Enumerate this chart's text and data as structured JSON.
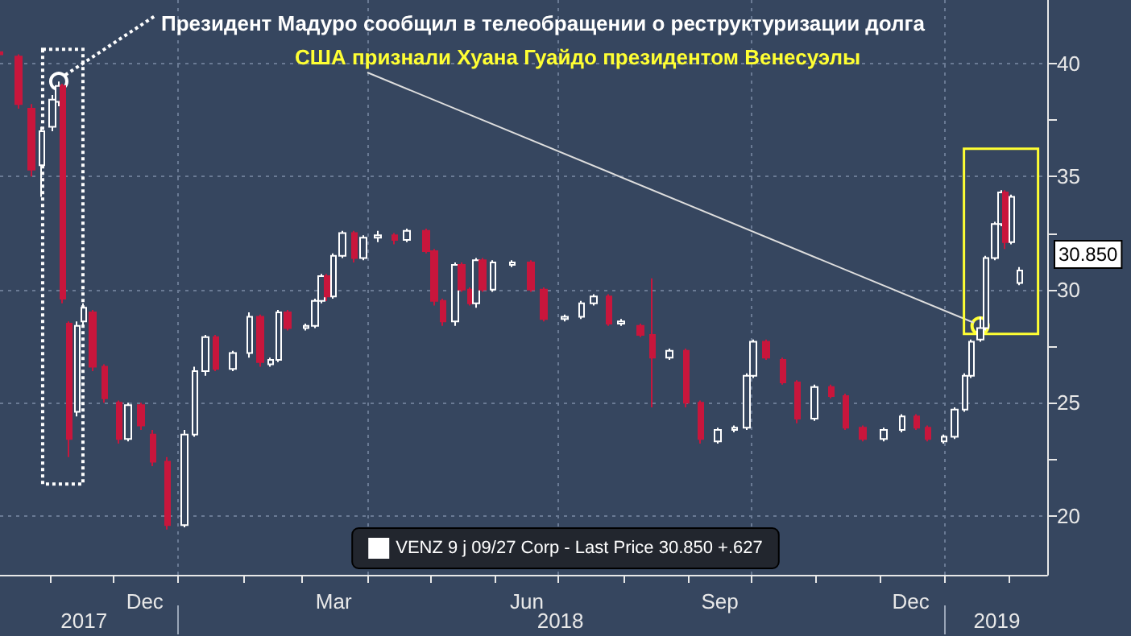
{
  "chart_data": {
    "type": "candlestick",
    "x": [
      "2017-10-08",
      "2017-10-17",
      "2017-10-23",
      "2017-10-28",
      "2017-11-02",
      "2017-11-05",
      "2017-11-07",
      "2017-11-10",
      "2017-11-14",
      "2017-11-17",
      "2017-11-21",
      "2017-11-27",
      "2017-12-04",
      "2017-12-08",
      "2017-12-14",
      "2017-12-20",
      "2017-12-27",
      "2018-01-04",
      "2018-01-09",
      "2018-01-14",
      "2018-01-19",
      "2018-01-27",
      "2018-02-04",
      "2018-02-09",
      "2018-02-14",
      "2018-02-18",
      "2018-02-22",
      "2018-03-03",
      "2018-03-07",
      "2018-03-10",
      "2018-03-13",
      "2018-03-16",
      "2018-03-20",
      "2018-03-26",
      "2018-03-30",
      "2018-04-06",
      "2018-04-14",
      "2018-04-20",
      "2018-04-29",
      "2018-05-03",
      "2018-05-07",
      "2018-05-13",
      "2018-05-16",
      "2018-05-20",
      "2018-05-23",
      "2018-05-26",
      "2018-05-31",
      "2018-06-09",
      "2018-06-18",
      "2018-06-24",
      "2018-07-04",
      "2018-07-12",
      "2018-07-18",
      "2018-07-25",
      "2018-07-31",
      "2018-08-09",
      "2018-08-15",
      "2018-08-23",
      "2018-08-31",
      "2018-09-07",
      "2018-09-15",
      "2018-09-23",
      "2018-09-29",
      "2018-10-02",
      "2018-10-08",
      "2018-10-16",
      "2018-10-23",
      "2018-10-31",
      "2018-11-08",
      "2018-11-15",
      "2018-11-23",
      "2018-12-03",
      "2018-12-12",
      "2018-12-19",
      "2018-12-24",
      "2019-01-01",
      "2019-01-06",
      "2019-01-11",
      "2019-01-14",
      "2019-01-18",
      "2019-01-21",
      "2019-01-25",
      "2019-01-28",
      "2019-01-30",
      "2019-02-02",
      "2019-02-06"
    ],
    "series": [
      {
        "name": "VENZ 9 j 09/27 Corp - Last Price 30.850 +.627",
        "color": "#ffffff",
        "ohlc": [
          [
            40.5,
            40.7,
            40.2,
            40.4
          ],
          [
            40.3,
            40.4,
            38.0,
            38.2
          ],
          [
            38.0,
            38.2,
            35.0,
            35.3
          ],
          [
            35.5,
            37.2,
            34.1,
            37.0
          ],
          [
            37.2,
            38.6,
            37.0,
            38.4
          ],
          [
            38.3,
            39.2,
            38.1,
            39.0
          ],
          [
            39.0,
            39.1,
            29.4,
            29.6
          ],
          [
            28.5,
            28.6,
            22.6,
            23.4
          ],
          [
            24.6,
            28.6,
            24.4,
            28.4
          ],
          [
            28.6,
            29.4,
            28.4,
            29.2
          ],
          [
            29.0,
            29.1,
            26.4,
            26.6
          ],
          [
            26.6,
            26.7,
            25.0,
            25.2
          ],
          [
            25.0,
            25.1,
            23.2,
            23.4
          ],
          [
            23.4,
            25.0,
            23.3,
            24.9
          ],
          [
            24.9,
            25.0,
            23.8,
            24.0
          ],
          [
            23.6,
            23.8,
            22.2,
            22.4
          ],
          [
            22.4,
            22.6,
            19.4,
            19.6
          ],
          [
            19.6,
            23.8,
            19.5,
            23.6
          ],
          [
            23.6,
            26.6,
            23.5,
            26.4
          ],
          [
            26.4,
            28.0,
            26.2,
            27.9
          ],
          [
            27.9,
            28.0,
            26.4,
            26.5
          ],
          [
            26.5,
            27.3,
            26.4,
            27.2
          ],
          [
            27.2,
            29.0,
            27.0,
            28.8
          ],
          [
            28.8,
            28.9,
            26.6,
            26.8
          ],
          [
            26.7,
            27.0,
            26.6,
            26.9
          ],
          [
            26.9,
            29.1,
            26.8,
            29.0
          ],
          [
            29.0,
            29.1,
            28.2,
            28.3
          ],
          [
            28.3,
            28.5,
            28.2,
            28.4
          ],
          [
            28.4,
            29.6,
            28.3,
            29.5
          ],
          [
            29.5,
            30.7,
            29.4,
            30.6
          ],
          [
            30.6,
            30.7,
            29.5,
            29.7
          ],
          [
            29.7,
            31.6,
            29.6,
            31.5
          ],
          [
            31.5,
            32.6,
            31.4,
            32.5
          ],
          [
            32.5,
            32.6,
            31.2,
            31.4
          ],
          [
            31.4,
            32.4,
            31.3,
            32.3
          ],
          [
            32.3,
            32.6,
            32.1,
            32.4
          ],
          [
            32.4,
            32.5,
            32.0,
            32.2
          ],
          [
            32.2,
            32.7,
            32.1,
            32.6
          ],
          [
            32.6,
            32.7,
            31.6,
            31.7
          ],
          [
            31.7,
            31.8,
            29.3,
            29.5
          ],
          [
            29.5,
            29.6,
            28.4,
            28.6
          ],
          [
            28.6,
            31.2,
            28.4,
            31.1
          ],
          [
            31.1,
            31.2,
            29.9,
            30.0
          ],
          [
            30.0,
            30.1,
            29.3,
            29.4
          ],
          [
            29.4,
            31.4,
            29.2,
            31.3
          ],
          [
            31.3,
            31.4,
            29.9,
            30.0
          ],
          [
            30.0,
            31.3,
            29.9,
            31.2
          ],
          [
            31.1,
            31.3,
            31.0,
            31.2
          ],
          [
            31.2,
            31.3,
            29.9,
            30.0
          ],
          [
            30.0,
            30.1,
            28.6,
            28.7
          ],
          [
            28.7,
            28.9,
            28.6,
            28.8
          ],
          [
            28.8,
            29.5,
            28.7,
            29.4
          ],
          [
            29.4,
            29.8,
            29.3,
            29.7
          ],
          [
            29.7,
            29.8,
            28.4,
            28.5
          ],
          [
            28.5,
            28.7,
            28.4,
            28.6
          ],
          [
            28.4,
            28.5,
            27.9,
            28.0
          ],
          [
            28.0,
            30.5,
            24.8,
            27.0
          ],
          [
            27.0,
            27.4,
            26.9,
            27.3
          ],
          [
            27.3,
            27.4,
            24.8,
            25.0
          ],
          [
            25.0,
            25.1,
            23.2,
            23.4
          ],
          [
            23.3,
            23.9,
            23.2,
            23.8
          ],
          [
            23.8,
            24.0,
            23.7,
            23.9
          ],
          [
            23.9,
            26.3,
            23.8,
            26.2
          ],
          [
            26.2,
            27.8,
            26.1,
            27.7
          ],
          [
            27.7,
            27.8,
            26.9,
            27.0
          ],
          [
            26.9,
            27.0,
            25.8,
            25.9
          ],
          [
            25.9,
            26.0,
            24.1,
            24.3
          ],
          [
            24.3,
            25.8,
            24.2,
            25.7
          ],
          [
            25.7,
            25.8,
            25.2,
            25.3
          ],
          [
            25.3,
            25.4,
            23.8,
            23.9
          ],
          [
            23.9,
            24.0,
            23.3,
            23.4
          ],
          [
            23.4,
            23.9,
            23.3,
            23.8
          ],
          [
            23.8,
            24.5,
            23.7,
            24.4
          ],
          [
            24.4,
            24.5,
            23.8,
            23.9
          ],
          [
            23.9,
            24.0,
            23.3,
            23.4
          ],
          [
            23.3,
            23.6,
            23.2,
            23.5
          ],
          [
            23.5,
            24.8,
            23.4,
            24.7
          ],
          [
            24.7,
            26.3,
            24.6,
            26.2
          ],
          [
            26.2,
            27.8,
            26.1,
            27.7
          ],
          [
            27.8,
            28.8,
            27.7,
            28.3
          ],
          [
            28.3,
            31.5,
            28.2,
            31.4
          ],
          [
            31.4,
            33.0,
            31.3,
            32.9
          ],
          [
            32.9,
            34.4,
            32.8,
            34.3
          ],
          [
            34.3,
            34.4,
            31.8,
            32.1
          ],
          [
            32.1,
            34.2,
            32.0,
            34.1
          ],
          [
            30.3,
            31.0,
            30.2,
            30.85
          ]
        ],
        "colors": [
          "#c8163c",
          "#c8163c",
          "#c8163c",
          "#ffffff",
          "#ffffff",
          "#ffffff",
          "#c8163c",
          "#c8163c",
          "#ffffff",
          "#ffffff",
          "#c8163c",
          "#c8163c",
          "#c8163c",
          "#ffffff",
          "#c8163c",
          "#c8163c",
          "#c8163c",
          "#ffffff",
          "#ffffff",
          "#ffffff",
          "#c8163c",
          "#ffffff",
          "#ffffff",
          "#c8163c",
          "#ffffff",
          "#ffffff",
          "#c8163c",
          "#ffffff",
          "#ffffff",
          "#ffffff",
          "#c8163c",
          "#ffffff",
          "#ffffff",
          "#c8163c",
          "#ffffff",
          "#ffffff",
          "#c8163c",
          "#ffffff",
          "#c8163c",
          "#c8163c",
          "#c8163c",
          "#ffffff",
          "#c8163c",
          "#c8163c",
          "#ffffff",
          "#c8163c",
          "#ffffff",
          "#ffffff",
          "#c8163c",
          "#c8163c",
          "#ffffff",
          "#ffffff",
          "#ffffff",
          "#c8163c",
          "#ffffff",
          "#c8163c",
          "#c8163c",
          "#ffffff",
          "#c8163c",
          "#c8163c",
          "#ffffff",
          "#ffffff",
          "#ffffff",
          "#ffffff",
          "#c8163c",
          "#c8163c",
          "#c8163c",
          "#ffffff",
          "#c8163c",
          "#c8163c",
          "#c8163c",
          "#ffffff",
          "#ffffff",
          "#c8163c",
          "#c8163c",
          "#ffffff",
          "#ffffff",
          "#ffffff",
          "#ffffff",
          "#ffffff",
          "#ffffff",
          "#ffffff",
          "#ffffff",
          "#c8163c",
          "#ffffff",
          "#ffffff"
        ]
      }
    ],
    "xlim": [
      "2017-10-08",
      "2019-02-19"
    ],
    "xticks": [
      {
        "value": "2017-11-01",
        "label": null
      },
      {
        "value": "2017-12-01",
        "label": null
      },
      {
        "value": "2017-12-16",
        "label": "Dec"
      },
      {
        "value": "2018-01-01",
        "label": null
      },
      {
        "value": "2018-02-01",
        "label": null
      },
      {
        "value": "2018-03-01",
        "label": null
      },
      {
        "value": "2018-03-16",
        "label": "Mar"
      },
      {
        "value": "2018-04-01",
        "label": null
      },
      {
        "value": "2018-05-01",
        "label": null
      },
      {
        "value": "2018-06-01",
        "label": null
      },
      {
        "value": "2018-06-16",
        "label": "Jun"
      },
      {
        "value": "2018-07-01",
        "label": null
      },
      {
        "value": "2018-08-01",
        "label": null
      },
      {
        "value": "2018-09-01",
        "label": null
      },
      {
        "value": "2018-09-16",
        "label": "Sep"
      },
      {
        "value": "2018-10-01",
        "label": null
      },
      {
        "value": "2018-11-01",
        "label": null
      },
      {
        "value": "2018-12-01",
        "label": null
      },
      {
        "value": "2018-12-16",
        "label": "Dec"
      },
      {
        "value": "2019-01-01",
        "label": null
      },
      {
        "value": "2019-02-01",
        "label": null
      }
    ],
    "x2lim": [
      "2017-10-08",
      "2019-02-19"
    ],
    "x2ticks": [
      {
        "value": "2017-11-17",
        "label": "2017"
      },
      {
        "value": "2018-01-01",
        "label": null
      },
      {
        "value": "2018-07-02",
        "label": "2018"
      },
      {
        "value": "2019-01-01",
        "label": null
      },
      {
        "value": "2019-01-26",
        "label": "2019"
      }
    ],
    "ylim": [
      17.4,
      42.8
    ],
    "yticks": [
      20,
      {
        "value": 22.5,
        "label": null
      },
      25,
      {
        "value": 27.5,
        "label": null
      },
      30,
      {
        "value": 32.5,
        "label": null
      },
      35,
      {
        "value": 37.5,
        "label": null
      },
      40
    ],
    "grid": true,
    "legend": "bottom",
    "annotations": [
      {
        "text": "Президент Мадуро сообщил в телеобращении о реструктуризации долга",
        "x": "2017-11-05",
        "y": 39.2
      },
      {
        "text": "США признали Хуана Гуайдо президентом Венесуэлы",
        "x": "2019-01-18",
        "y": 28.4
      },
      "30.850"
    ]
  }
}
